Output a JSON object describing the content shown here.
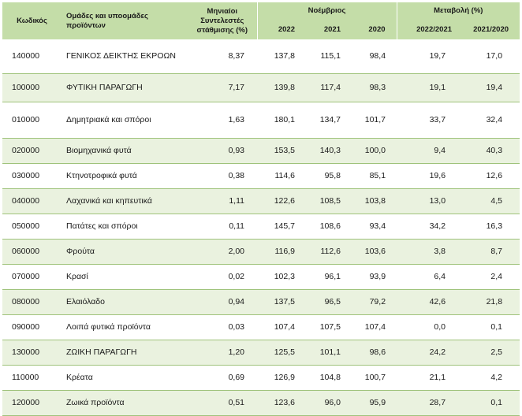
{
  "header": {
    "code": "Κωδικός",
    "groups": "Ομάδες και υποομάδες προϊόντων",
    "weights": "Μηνιαίοι Συντελεστές στάθμισης (%)",
    "november": "Νοέμβριος",
    "change": "Μεταβολή (%)",
    "y2022": "2022",
    "y2021": "2021",
    "y2020": "2020",
    "c1": "2022/2021",
    "c2": "2021/2020"
  },
  "rows": [
    {
      "code": "140000",
      "name": "ΓΕΝΙΚΟΣ ΔΕΙΚΤΗΣ ΕΚΡΟΩΝ",
      "weight": "8,37",
      "y2022": "137,8",
      "y2021": "115,1",
      "y2020": "98,4",
      "c1": "19,7",
      "c2": "17,0"
    },
    {
      "code": "100000",
      "name": "ΦΥΤΙΚΗ ΠΑΡΑΓΩΓΗ",
      "weight": "7,17",
      "y2022": "139,8",
      "y2021": "117,4",
      "y2020": "98,3",
      "c1": "19,1",
      "c2": "19,4"
    },
    {
      "code": "010000",
      "name": "Δημητριακά και σπόροι",
      "weight": "1,63",
      "y2022": "180,1",
      "y2021": "134,7",
      "y2020": "101,7",
      "c1": "33,7",
      "c2": "32,4"
    },
    {
      "code": "020000",
      "name": "Βιομηχανικά φυτά",
      "weight": "0,93",
      "y2022": "153,5",
      "y2021": "140,3",
      "y2020": "100,0",
      "c1": "9,4",
      "c2": "40,3"
    },
    {
      "code": "030000",
      "name": "Κτηνοτροφικά φυτά",
      "weight": "0,38",
      "y2022": "114,6",
      "y2021": "95,8",
      "y2020": "85,1",
      "c1": "19,6",
      "c2": "12,6"
    },
    {
      "code": "040000",
      "name": "Λαχανικά και κηπευτικά",
      "weight": "1,11",
      "y2022": "122,6",
      "y2021": "108,5",
      "y2020": "103,8",
      "c1": "13,0",
      "c2": "4,5"
    },
    {
      "code": "050000",
      "name": "Πατάτες και σπόροι",
      "weight": "0,11",
      "y2022": "145,7",
      "y2021": "108,6",
      "y2020": "93,4",
      "c1": "34,2",
      "c2": "16,3"
    },
    {
      "code": "060000",
      "name": "Φρούτα",
      "weight": "2,00",
      "y2022": "116,9",
      "y2021": "112,6",
      "y2020": "103,6",
      "c1": "3,8",
      "c2": "8,7"
    },
    {
      "code": "070000",
      "name": "Κρασί",
      "weight": "0,02",
      "y2022": "102,3",
      "y2021": "96,1",
      "y2020": "93,9",
      "c1": "6,4",
      "c2": "2,4"
    },
    {
      "code": "080000",
      "name": "Ελαιόλαδο",
      "weight": "0,94",
      "y2022": "137,5",
      "y2021": "96,5",
      "y2020": "79,2",
      "c1": "42,6",
      "c2": "21,8"
    },
    {
      "code": "090000",
      "name": "Λοιπά φυτικά προϊόντα",
      "weight": "0,03",
      "y2022": "107,4",
      "y2021": "107,5",
      "y2020": "107,4",
      "c1": "0,0",
      "c2": "0,1"
    },
    {
      "code": "130000",
      "name": "ΖΩΙΚΗ ΠΑΡΑΓΩΓΗ",
      "weight": "1,20",
      "y2022": "125,5",
      "y2021": "101,1",
      "y2020": "98,6",
      "c1": "24,2",
      "c2": "2,5"
    },
    {
      "code": "110000",
      "name": "Κρέατα",
      "weight": "0,69",
      "y2022": "126,9",
      "y2021": "104,8",
      "y2020": "100,7",
      "c1": "21,1",
      "c2": "4,2"
    },
    {
      "code": "120000",
      "name": "Ζωικά προϊόντα",
      "weight": "0,51",
      "y2022": "123,6",
      "y2021": "96,0",
      "y2020": "95,9",
      "c1": "28,7",
      "c2": "0,1"
    }
  ]
}
